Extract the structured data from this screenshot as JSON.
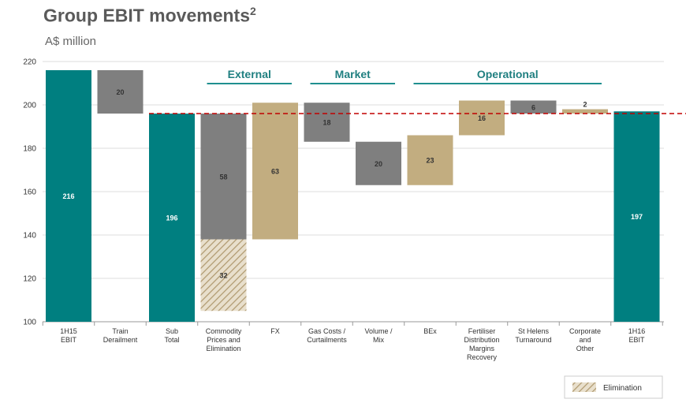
{
  "title": "Group EBIT movements",
  "title_sup": "2",
  "subtitle": "A$ million",
  "colors": {
    "teal": "#007f80",
    "grey": "#7f7f7f",
    "tan": "#c2ad80",
    "hatch": "#c2ad80",
    "dashed": "#c00000",
    "group_line": "#1f8f8f"
  },
  "chart_data": {
    "type": "bar",
    "subtype": "waterfall",
    "ylim": [
      100,
      220
    ],
    "yticks": [
      100,
      120,
      140,
      160,
      180,
      200,
      220
    ],
    "grid": true,
    "reference_line": 196,
    "groups": [
      {
        "label": "External",
        "from": 3,
        "to": 4
      },
      {
        "label": "Market",
        "from": 5,
        "to": 6
      },
      {
        "label": "Operational",
        "from": 7,
        "to": 10
      }
    ],
    "bars": [
      {
        "category": [
          "1H15",
          "EBIT"
        ],
        "bottom": 100,
        "top": 216,
        "label": "216",
        "style": "teal"
      },
      {
        "category": [
          "Train",
          "Derailment"
        ],
        "bottom": 196,
        "top": 216,
        "label": "20",
        "style": "grey"
      },
      {
        "category": [
          "Sub",
          "Total"
        ],
        "bottom": 100,
        "top": 196,
        "label": "196",
        "style": "teal"
      },
      {
        "category": [
          "Commodity",
          "Prices and",
          "Elimination"
        ],
        "bottom": 138,
        "top": 196,
        "label": "58",
        "style": "grey"
      },
      {
        "category": [
          "Commodity",
          "Prices and",
          "Elimination"
        ],
        "bottom": 105,
        "top": 138,
        "label": "32",
        "style": "hatch",
        "shared_slot": true
      },
      {
        "category": [
          "FX"
        ],
        "bottom": 138,
        "top": 201,
        "label": "63",
        "style": "tan"
      },
      {
        "category": [
          "Gas Costs /",
          "Curtailments"
        ],
        "bottom": 183,
        "top": 201,
        "label": "18",
        "style": "grey"
      },
      {
        "category": [
          "Volume /",
          "Mix"
        ],
        "bottom": 163,
        "top": 183,
        "label": "20",
        "style": "grey"
      },
      {
        "category": [
          "BEx"
        ],
        "bottom": 163,
        "top": 186,
        "label": "23",
        "style": "tan"
      },
      {
        "category": [
          "Fertiliser",
          "Distribution",
          "Margins",
          "Recovery"
        ],
        "bottom": 186,
        "top": 202,
        "label": "16",
        "style": "tan"
      },
      {
        "category": [
          "St Helens",
          "Turnaround"
        ],
        "bottom": 196,
        "top": 202,
        "label": "6",
        "style": "grey"
      },
      {
        "category": [
          "Corporate",
          "and",
          "Other"
        ],
        "bottom": 196,
        "top": 198,
        "label": "2",
        "style": "tan"
      },
      {
        "category": [
          "1H16",
          "EBIT"
        ],
        "bottom": 100,
        "top": 197,
        "label": "197",
        "style": "teal"
      }
    ],
    "legend": {
      "label": "Elimination",
      "position": "bottom-right"
    }
  }
}
